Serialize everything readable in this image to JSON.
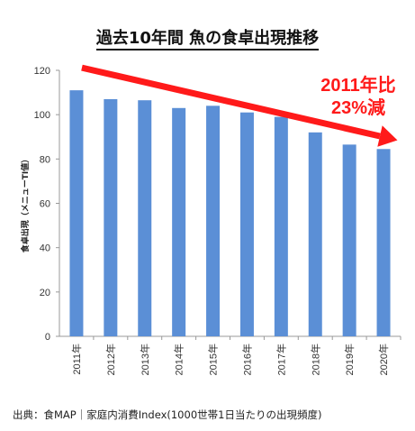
{
  "title": "過去10年間 魚の食卓出現推移",
  "source": "出典：食MAP｜家庭内消費Index(1000世帯1日当たりの出現頻度)",
  "annotation": {
    "line1": "2011年比",
    "line2": "23%減"
  },
  "chart_data": {
    "type": "bar",
    "categories": [
      "2011年",
      "2012年",
      "2013年",
      "2014年",
      "2015年",
      "2016年",
      "2017年",
      "2018年",
      "2019年",
      "2020年"
    ],
    "values": [
      111,
      107,
      106.5,
      103,
      104,
      101,
      99,
      92,
      86.5,
      84.5
    ],
    "ylabel": "食卓出現（メニューTI値）",
    "ylim": [
      0,
      120
    ],
    "yticks": [
      0,
      20,
      40,
      60,
      80,
      100,
      120
    ],
    "grid": false,
    "bar_color": "#5b8fd6",
    "trend_color": "#ff1a1a"
  }
}
